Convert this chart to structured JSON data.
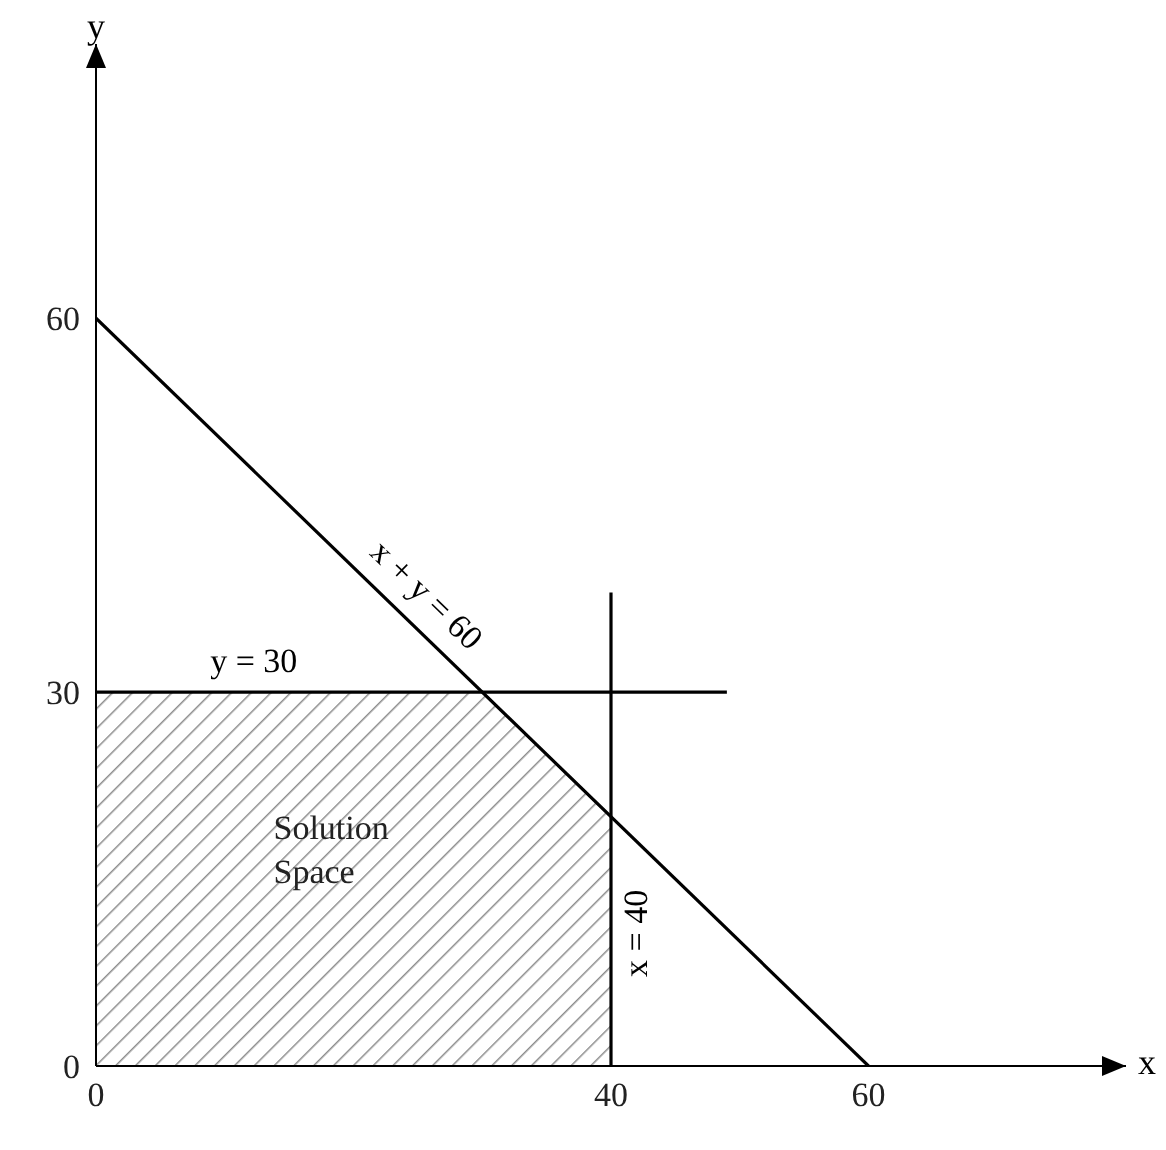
{
  "chart_data": {
    "type": "line",
    "xlabel": "x",
    "ylabel": "y",
    "xlim": [
      0,
      80
    ],
    "ylim": [
      0,
      82
    ],
    "xticks": [
      0,
      40,
      60
    ],
    "yticks": [
      0,
      30,
      60
    ],
    "grid": false,
    "marker": "none",
    "line_style": "solid",
    "series": [
      {
        "type": "area",
        "name": "Solution Space",
        "color": "#000000",
        "x": [
          0,
          30,
          40
        ],
        "values": [
          30,
          30,
          20
        ]
      },
      {
        "name": "x + y = 60",
        "color": "#000000",
        "x": [
          0,
          60
        ],
        "values": [
          60,
          0
        ]
      },
      {
        "name": "y = 30",
        "color": "#000000",
        "x": [
          0,
          49
        ],
        "values": [
          30,
          30
        ]
      },
      {
        "name": "x = 40",
        "color": "#000000",
        "x": [
          40,
          40
        ],
        "values": [
          38,
          0
        ]
      }
    ]
  }
}
